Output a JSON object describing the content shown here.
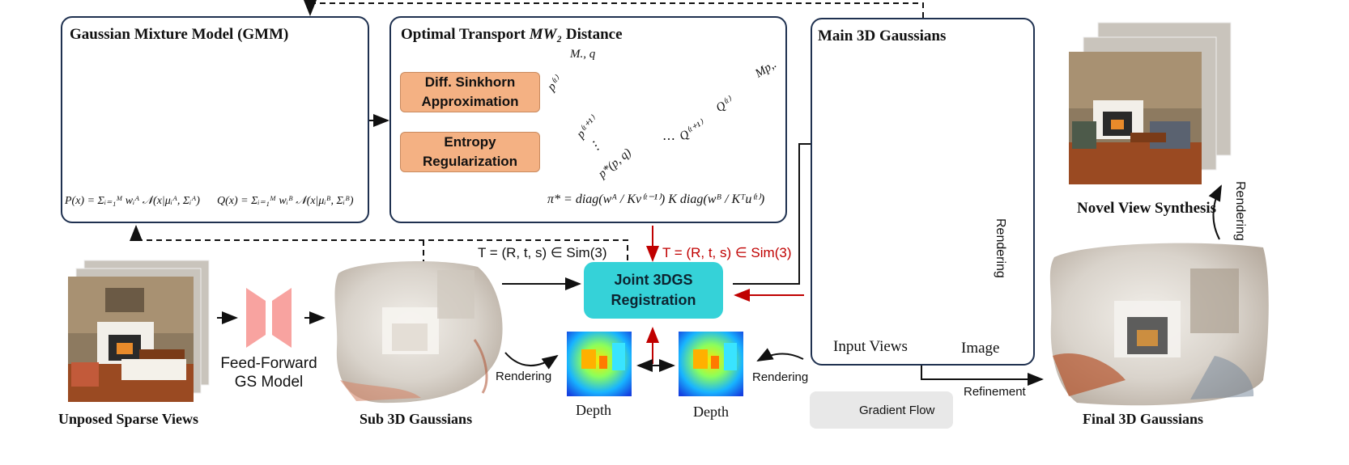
{
  "gmm": {
    "title": "Gaussian Mixture Model (GMM)",
    "eq_p": "P(x) = Σᵢ₌₁ᴹ wᵢᴬ 𝒩(x|μᵢᴬ, Σᵢᴬ)",
    "eq_q": "Q(x) = Σᵢ₌₁ᴹ wᵢᴮ 𝒩(x|μᵢᴮ, Σᵢᴮ)"
  },
  "ot": {
    "title_prefix": "Optimal Transport",
    "title_math": "MW₂",
    "title_suffix": "Distance",
    "sinkhorn": "Diff. Sinkhorn Approximation",
    "entropy": "Entropy Regularization",
    "labels": {
      "mq": "M., q",
      "mp": "Mp,.",
      "pt": "p⁽ᵗ⁾",
      "pt1": "p⁽ᵗ⁺¹⁾",
      "qt": "Q⁽ᵗ⁾",
      "qt1": "Q⁽ᵗ⁺¹⁾",
      "pstar": "p*(p, q)",
      "dots": "⋯"
    },
    "pi_eq": "π* = diag(wᴬ / Kv⁽ᵗ⁻¹⁾) K diag(wᴮ / Kᵀu⁽ᵗ⁾)"
  },
  "main": {
    "title": "Main 3D Gaussians",
    "rendering": "Rendering",
    "input_views": "Input Views",
    "image": "Image"
  },
  "novel": {
    "title": "Novel View Synthesis",
    "rendering": "Rendering"
  },
  "bottom": {
    "unposed": "Unposed Sparse Views",
    "ff_model": "Feed-Forward GS Model",
    "sub": "Sub 3D Gaussians",
    "t_black": "T = (R, t, s) ∈ Sim(3)",
    "t_red": "T = (R, t, s) ∈ Sim(3)",
    "joint": "Joint 3DGS Registration",
    "rendering_left": "Rendering",
    "rendering_right": "Rendering",
    "depth_left": "Depth",
    "depth_right": "Depth",
    "legend": "Gradient Flow",
    "refinement": "Refinement",
    "final": "Final 3D Gaussians"
  },
  "colors": {
    "panel_border": "#1f3150",
    "orange_box": "#f4b183",
    "teal_box": "#35d2d8",
    "gradient_red": "#c00000",
    "transport_pink": "#f4a3a3"
  }
}
